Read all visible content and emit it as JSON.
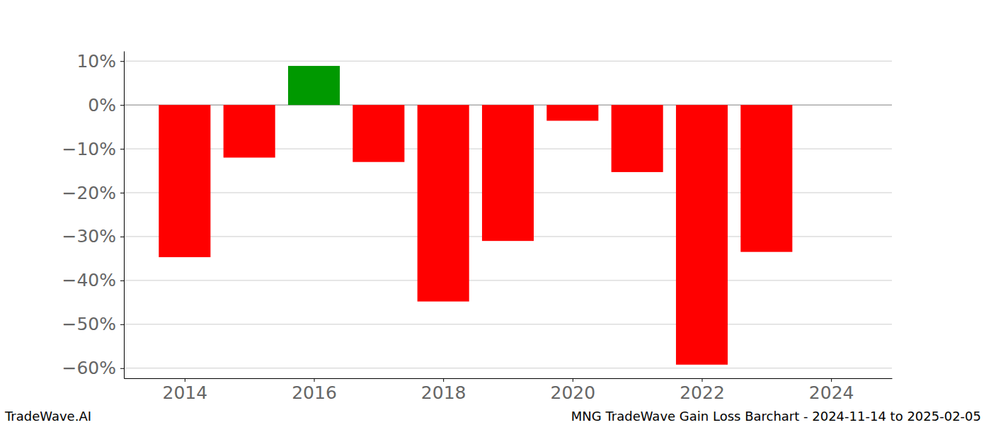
{
  "chart_data": {
    "type": "bar",
    "x": [
      2014,
      2015,
      2016,
      2017,
      2018,
      2019,
      2020,
      2021,
      2022,
      2023
    ],
    "values": [
      -34.7,
      -12.0,
      8.9,
      -13.0,
      -44.8,
      -31.0,
      -3.6,
      -15.3,
      -59.2,
      -33.5
    ],
    "colors": [
      "#ff0000",
      "#ff0000",
      "#009900",
      "#ff0000",
      "#ff0000",
      "#ff0000",
      "#ff0000",
      "#ff0000",
      "#ff0000",
      "#ff0000"
    ],
    "xlim": [
      2013.06,
      2024.94
    ],
    "xticks": [
      2014,
      2016,
      2018,
      2020,
      2022,
      2024
    ],
    "ylim": [
      -62.3,
      12.3
    ],
    "yticks": [
      {
        "value": -60,
        "label": "−60%"
      },
      {
        "value": -50,
        "label": "−50%"
      },
      {
        "value": -40,
        "label": "−40%"
      },
      {
        "value": -30,
        "label": "−30%"
      },
      {
        "value": -20,
        "label": "−20%"
      },
      {
        "value": -10,
        "label": "−10%"
      },
      {
        "value": 0,
        "label": "0%"
      },
      {
        "value": 10,
        "label": "10%"
      }
    ],
    "grid": true,
    "annotations": [
      "TradeWave.AI",
      "MNG TradeWave Gain Loss Barchart - 2024-11-14 to 2025-02-05"
    ]
  }
}
